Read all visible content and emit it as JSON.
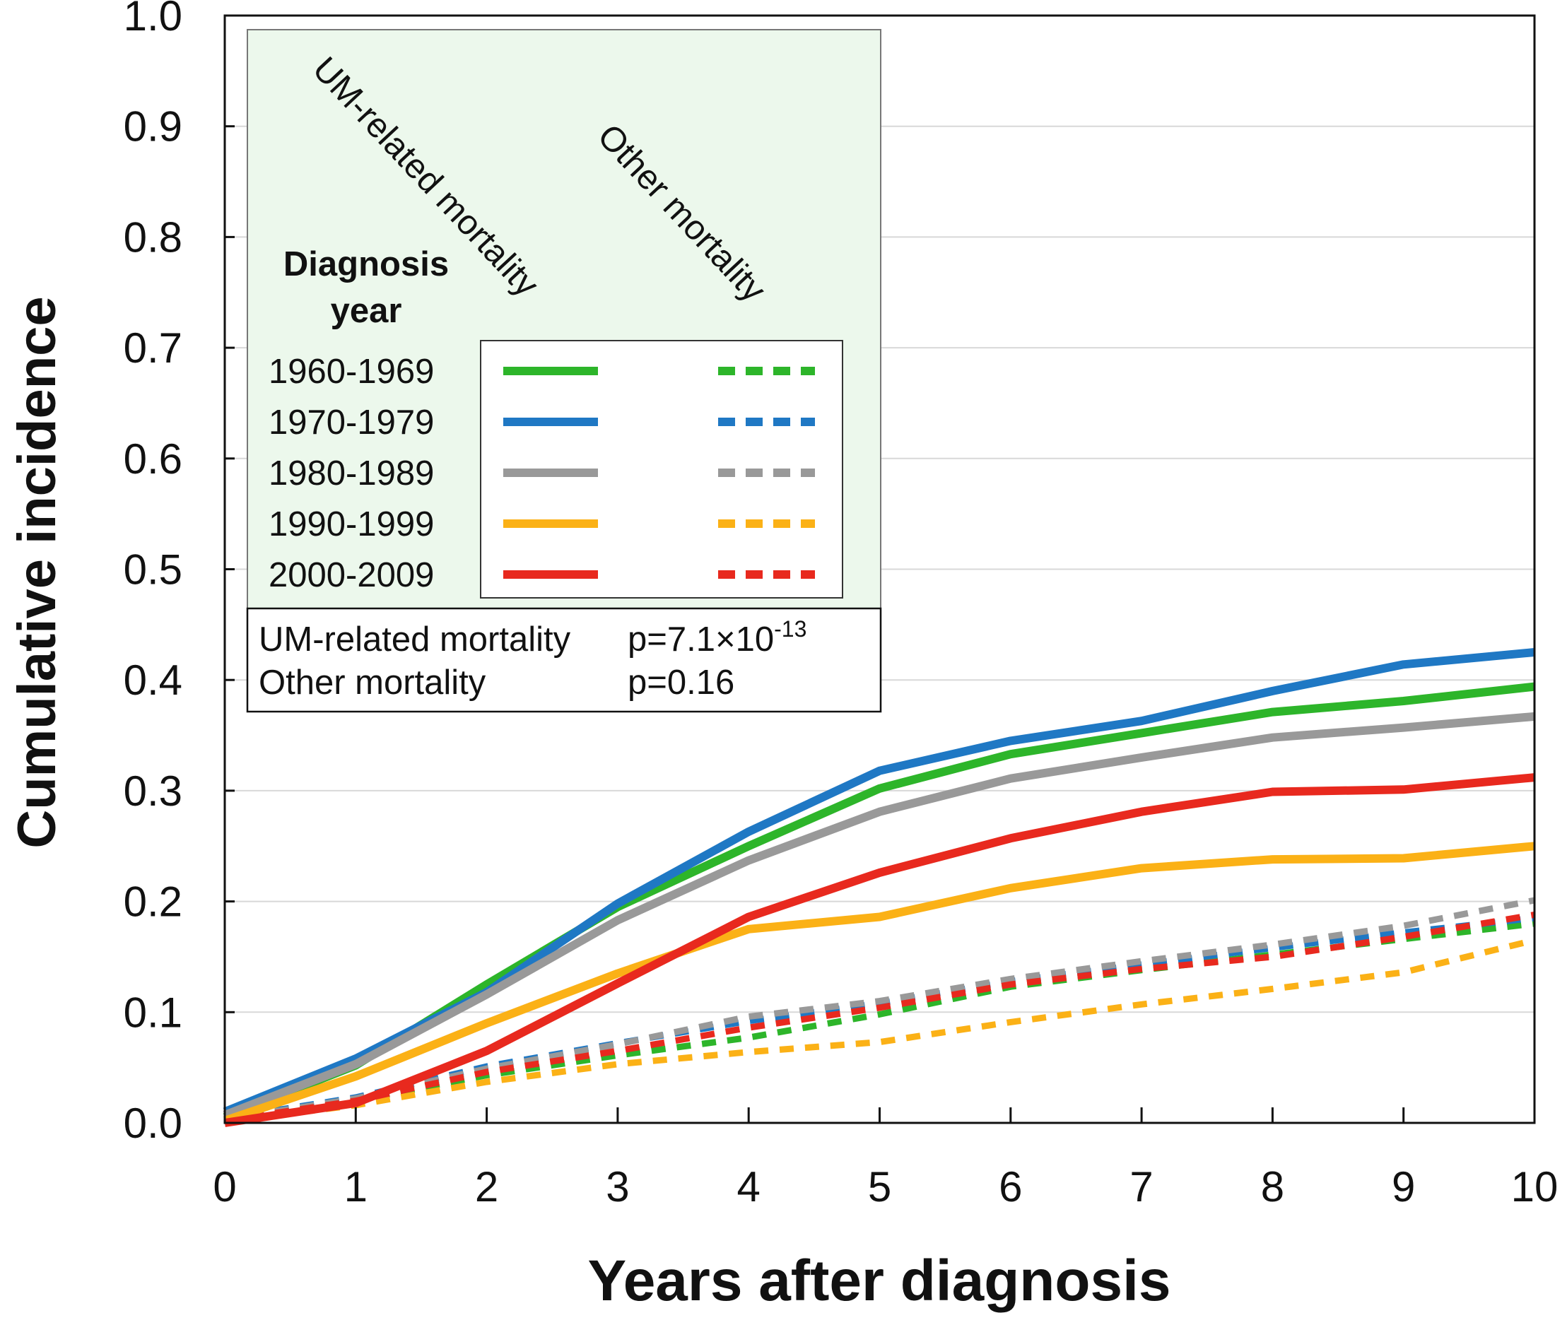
{
  "chart_data": {
    "type": "line",
    "title": "",
    "xlabel": "Years after diagnosis",
    "ylabel": "Cumulative incidence",
    "xlim": [
      0,
      10
    ],
    "ylim": [
      0,
      1.0
    ],
    "x_ticks": [
      "0",
      "1",
      "2",
      "3",
      "4",
      "5",
      "6",
      "7",
      "8",
      "9",
      "10"
    ],
    "y_ticks": [
      "0.0",
      "0.1",
      "0.2",
      "0.3",
      "0.4",
      "0.5",
      "0.6",
      "0.7",
      "0.8",
      "0.9",
      "1.0"
    ],
    "grid": "horizontal",
    "x": [
      0,
      1,
      2,
      3,
      4,
      5,
      6,
      7,
      8,
      9,
      10
    ],
    "legend": {
      "header": [
        "Diagnosis",
        "year"
      ],
      "column_labels": [
        "UM-related mortality",
        "Other mortality"
      ],
      "entries": [
        "1960-1969",
        "1970-1979",
        "1980-1989",
        "1990-1999",
        "2000-2009"
      ],
      "placement": "top-left"
    },
    "stats": [
      {
        "label": "UM-related mortality",
        "p_base": "p=7.1×10",
        "p_exp": "-13"
      },
      {
        "label": "Other mortality",
        "p_base": "p=0.16",
        "p_exp": ""
      }
    ],
    "series": [
      {
        "name": "1960-1969",
        "kind": "UM-related mortality",
        "color": "#2db52a",
        "dashed": false,
        "values": [
          0.005,
          0.052,
          0.125,
          0.195,
          0.25,
          0.302,
          0.333,
          0.352,
          0.371,
          0.381,
          0.394
        ]
      },
      {
        "name": "1970-1979",
        "kind": "UM-related mortality",
        "color": "#1f78c4",
        "dashed": false,
        "values": [
          0.01,
          0.058,
          0.118,
          0.198,
          0.263,
          0.318,
          0.345,
          0.363,
          0.39,
          0.414,
          0.425
        ]
      },
      {
        "name": "1980-1989",
        "kind": "UM-related mortality",
        "color": "#999999",
        "dashed": false,
        "values": [
          0.007,
          0.053,
          0.116,
          0.183,
          0.237,
          0.281,
          0.311,
          0.33,
          0.348,
          0.357,
          0.367
        ]
      },
      {
        "name": "1990-1999",
        "kind": "UM-related mortality",
        "color": "#fbb116",
        "dashed": false,
        "values": [
          0.002,
          0.042,
          0.09,
          0.135,
          0.175,
          0.186,
          0.212,
          0.23,
          0.238,
          0.239,
          0.25
        ]
      },
      {
        "name": "2000-2009",
        "kind": "UM-related mortality",
        "color": "#e8291e",
        "dashed": false,
        "values": [
          0.0,
          0.018,
          0.065,
          0.126,
          0.186,
          0.226,
          0.257,
          0.281,
          0.299,
          0.301,
          0.312
        ]
      },
      {
        "name": "1960-1969",
        "kind": "Other mortality",
        "color": "#2db52a",
        "dashed": true,
        "values": [
          0.002,
          0.02,
          0.043,
          0.061,
          0.077,
          0.098,
          0.123,
          0.138,
          0.152,
          0.166,
          0.18
        ]
      },
      {
        "name": "1970-1979",
        "kind": "Other mortality",
        "color": "#1f78c4",
        "dashed": true,
        "values": [
          0.004,
          0.023,
          0.051,
          0.072,
          0.092,
          0.108,
          0.128,
          0.143,
          0.158,
          0.172,
          0.185
        ]
      },
      {
        "name": "1980-1989",
        "kind": "Other mortality",
        "color": "#999999",
        "dashed": true,
        "values": [
          0.003,
          0.022,
          0.049,
          0.071,
          0.096,
          0.11,
          0.13,
          0.146,
          0.161,
          0.178,
          0.201
        ]
      },
      {
        "name": "1990-1999",
        "kind": "Other mortality",
        "color": "#fbb116",
        "dashed": true,
        "values": [
          0.001,
          0.016,
          0.037,
          0.053,
          0.064,
          0.073,
          0.091,
          0.107,
          0.121,
          0.136,
          0.165
        ]
      },
      {
        "name": "2000-2009",
        "kind": "Other mortality",
        "color": "#e8291e",
        "dashed": true,
        "values": [
          0.002,
          0.02,
          0.046,
          0.065,
          0.086,
          0.104,
          0.125,
          0.139,
          0.15,
          0.168,
          0.188
        ]
      }
    ]
  }
}
